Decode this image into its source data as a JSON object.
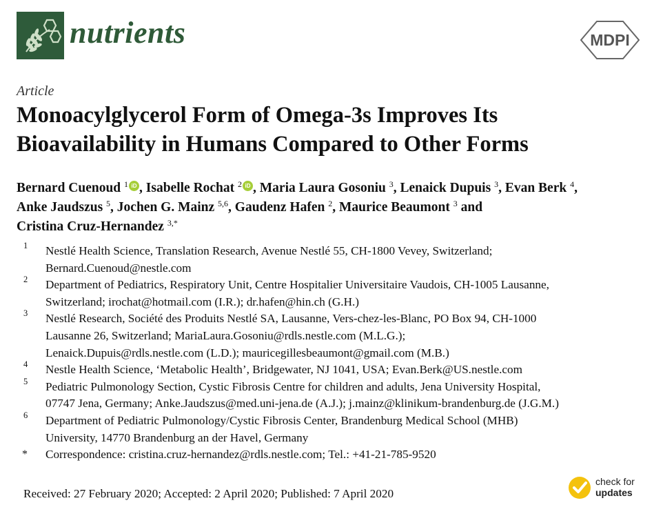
{
  "header": {
    "journal_name": "nutrients",
    "publisher": "MDPI"
  },
  "article": {
    "type": "Article",
    "title_line1": "Monoacylglycerol Form of Omega-3s Improves Its",
    "title_line2": "Bioavailability in Humans Compared to Other Forms"
  },
  "authors": [
    {
      "name": "Bernard Cuenoud",
      "sup": "1",
      "orcid": true,
      "sep": ", "
    },
    {
      "name": "Isabelle Rochat",
      "sup": "2",
      "orcid": true,
      "sep": ", "
    },
    {
      "name": "Maria Laura Gosoniu",
      "sup": "3",
      "orcid": false,
      "sep": ", "
    },
    {
      "name": "Lenaick Dupuis",
      "sup": "3",
      "orcid": false,
      "sep": ", "
    },
    {
      "name": "Evan Berk",
      "sup": "4",
      "orcid": false,
      "sep": ","
    },
    {
      "name": "Anke Jaudszus",
      "sup": "5",
      "orcid": false,
      "sep": ", "
    },
    {
      "name": "Jochen G. Mainz",
      "sup": "5,6",
      "orcid": false,
      "sep": ", "
    },
    {
      "name": "Gaudenz Hafen",
      "sup": "2",
      "orcid": false,
      "sep": ", "
    },
    {
      "name": "Maurice Beaumont",
      "sup": "3",
      "orcid": false,
      "sep": " and "
    },
    {
      "name": "Cristina Cruz-Hernandez",
      "sup": "3,*",
      "orcid": false,
      "sep": ""
    }
  ],
  "orcid_label": "iD",
  "affiliations": [
    {
      "num": "1",
      "lines": [
        "Nestlé Health Science, Translation Research, Avenue Nestlé 55, CH-1800 Vevey, Switzerland;",
        "Bernard.Cuenoud@nestle.com"
      ]
    },
    {
      "num": "2",
      "lines": [
        "Department of Pediatrics, Respiratory Unit, Centre Hospitalier Universitaire Vaudois, CH-1005 Lausanne,",
        "Switzerland; irochat@hotmail.com (I.R.); dr.hafen@hin.ch (G.H.)"
      ]
    },
    {
      "num": "3",
      "lines": [
        "Nestlé Research, Société des Produits Nestlé SA, Lausanne, Vers-chez-les-Blanc, PO Box 94, CH-1000",
        "Lausanne 26, Switzerland; MariaLaura.Gosoniu@rdls.nestle.com (M.L.G.);",
        "Lenaick.Dupuis@rdls.nestle.com (L.D.); mauricegillesbeaumont@gmail.com (M.B.)"
      ]
    },
    {
      "num": "4",
      "lines": [
        "Nestle Health Science, ‘Metabolic Health’, Bridgewater, NJ 1041, USA; Evan.Berk@US.nestle.com"
      ]
    },
    {
      "num": "5",
      "lines": [
        "Pediatric Pulmonology Section, Cystic Fibrosis Centre for children and adults, Jena University Hospital,",
        "07747 Jena, Germany; Anke.Jaudszus@med.uni-jena.de (A.J.); j.mainz@klinikum-brandenburg.de (J.G.M.)"
      ]
    },
    {
      "num": "6",
      "lines": [
        "Department of Pediatric Pulmonology/Cystic Fibrosis Center, Brandenburg Medical School (MHB)",
        "University, 14770 Brandenburg an der Havel, Germany"
      ]
    },
    {
      "num": "*",
      "lines": [
        "Correspondence: cristina.cruz-hernandez@rdls.nestle.com; Tel.: +41-21-785-9520"
      ]
    }
  ],
  "dates": "Received: 27 February 2020; Accepted: 2 April 2020; Published: 7 April 2020",
  "check_updates": {
    "line1": "check for",
    "line2": "updates"
  },
  "colors": {
    "journal_green": "#2f5a38",
    "orcid_green": "#a6ce39",
    "updates_yellow": "#f4c20d"
  }
}
